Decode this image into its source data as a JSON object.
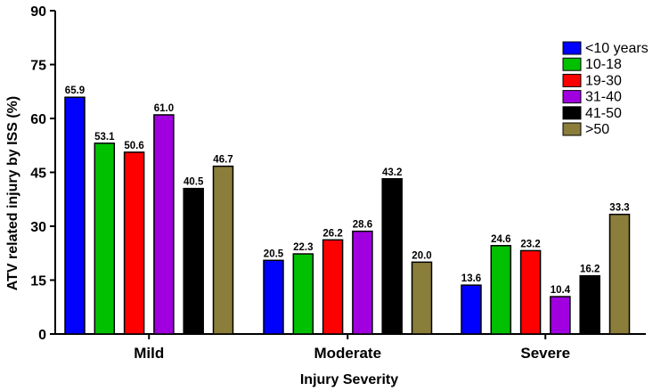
{
  "chart_data": {
    "type": "bar",
    "title": "",
    "xlabel": "Injury Severity",
    "ylabel": "ATV related injury by ISS (%)",
    "ylim": [
      0,
      90
    ],
    "yticks": [
      0,
      15,
      30,
      45,
      60,
      75,
      90
    ],
    "categories": [
      "Mild",
      "Moderate",
      "Severe"
    ],
    "series": [
      {
        "name": "<10 years",
        "color": "#0000ff",
        "values": [
          65.9,
          20.5,
          13.6
        ],
        "labels": [
          "65.9",
          "20.5",
          "13.6"
        ]
      },
      {
        "name": "10-18",
        "color": "#00c000",
        "values": [
          53.1,
          22.3,
          24.6
        ],
        "labels": [
          "53.1",
          "22.3",
          "24.6"
        ]
      },
      {
        "name": "19-30",
        "color": "#ff0000",
        "values": [
          50.6,
          26.2,
          23.2
        ],
        "labels": [
          "50.6",
          "26.2",
          "23.2"
        ]
      },
      {
        "name": "31-40",
        "color": "#a000e0",
        "values": [
          61.0,
          28.6,
          10.4
        ],
        "labels": [
          "61.0",
          "28.6",
          "10.4"
        ]
      },
      {
        "name": "41-50",
        "color": "#000000",
        "values": [
          40.5,
          43.2,
          16.2
        ],
        "labels": [
          "40.5",
          "43.2",
          "16.2"
        ]
      },
      {
        "name": ">50",
        "color": "#8b7d3a",
        "values": [
          46.7,
          20.0,
          33.3
        ],
        "labels": [
          "46.7",
          "20.0",
          "33.3"
        ]
      }
    ],
    "legend": "top-right",
    "grid": false
  }
}
